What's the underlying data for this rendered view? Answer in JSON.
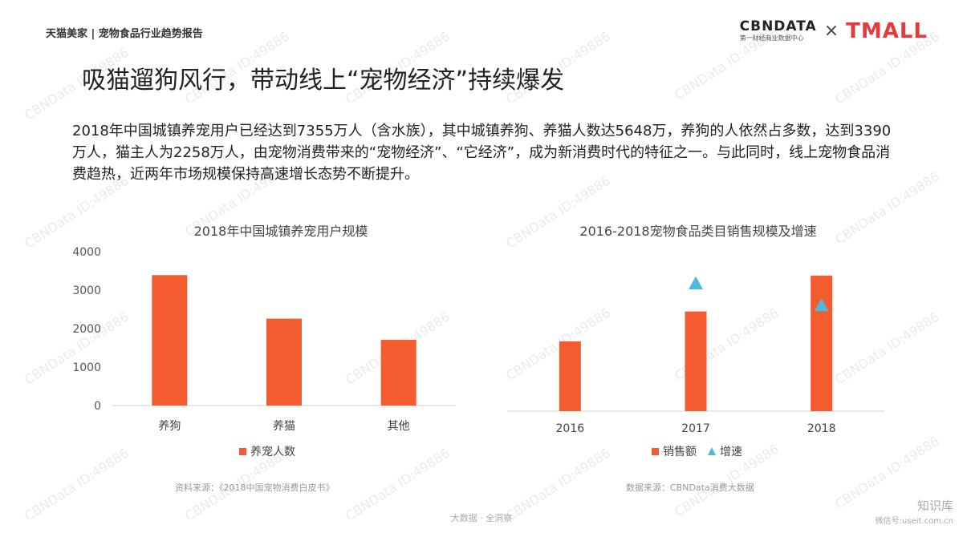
{
  "header": {
    "breadcrumb": "天猫美家 | 宠物食品行业趋势报告",
    "logo_cbn": "CBNDATA",
    "logo_cbn_sub": "第一财经商业数据中心",
    "logo_times": "×",
    "logo_tmall": "TMALL"
  },
  "title": "吸猫遛狗风行，带动线上“宠物经济”持续爆发",
  "intro": "2018年中国城镇养宠用户已经达到7355万人（含水族），其中城镇养狗、养猫人数达5648万，养狗的人依然占多数，达到3390万人，猫主人为2258万人，由宠物消费带来的“宠物经济”、“它经济”，成为新消费时代的特征之一。与此同时，线上宠物食品消费趋热，近两年市场规模保持高速增长态势不断提升。",
  "chart_data": [
    {
      "type": "bar",
      "title": "2018年中国城镇养宠用户规模",
      "categories": [
        "养狗",
        "养猫",
        "其他"
      ],
      "series": [
        {
          "name": "养宠人数",
          "values": [
            3390,
            2258,
            1707
          ],
          "color": "#f45b2f"
        }
      ],
      "yticks": [
        "0",
        "1000",
        "2000",
        "3000",
        "4000"
      ],
      "ylim": [
        0,
        4000
      ],
      "grid": false,
      "legend_position": "bottom"
    },
    {
      "type": "bar",
      "title": "2016-2018宠物食品类目销售规模及增速",
      "categories": [
        "2016",
        "2017",
        "2018"
      ],
      "series": [
        {
          "name": "销售额",
          "values": [
            1.75,
            2.5,
            3.4
          ],
          "color": "#f45b2f"
        },
        {
          "name": "增速",
          "values": [
            null,
            3.2,
            2.65
          ],
          "color": "#4fb8df"
        }
      ],
      "y_axis_shown": false,
      "ylim": [
        0,
        4
      ],
      "grid": false,
      "legend_position": "bottom"
    }
  ],
  "sources": {
    "left": "资料来源：《2018中国宠物消费白皮书》",
    "right": "数据来源：CBNData消费大数据"
  },
  "footer_note": "大数据 · 全洞察",
  "watermark": {
    "name": "知识库",
    "sub": "微信号:useit.com.cn",
    "repeat": "CBNData ID:49886"
  }
}
